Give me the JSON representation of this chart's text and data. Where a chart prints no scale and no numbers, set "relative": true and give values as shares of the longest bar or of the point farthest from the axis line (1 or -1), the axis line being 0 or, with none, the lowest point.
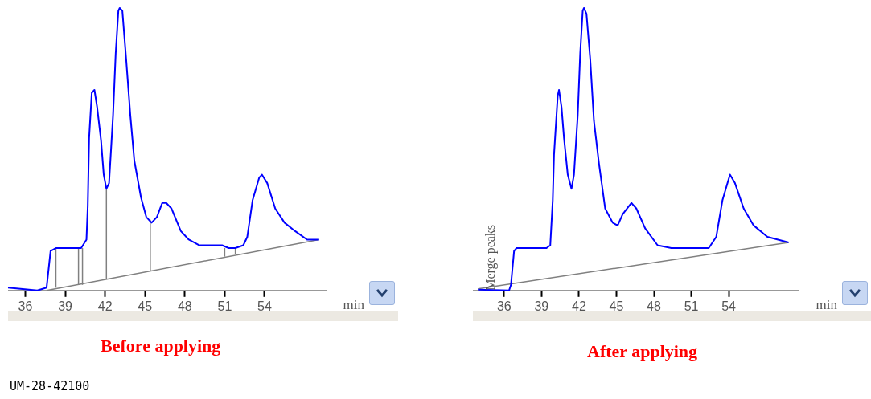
{
  "chart_data": [
    {
      "type": "line",
      "title": "Before applying",
      "xlabel": "min",
      "relative": true,
      "xlim": [
        34.7,
        58.6
      ],
      "xticks": [
        36,
        39,
        42,
        45,
        48,
        51,
        54
      ],
      "grid": false,
      "legend": false,
      "marker": "none",
      "line_style": "solid",
      "annotations": [
        "UM-28-42100"
      ],
      "series": [
        {
          "color": "#0000ff",
          "x": [
            34.7,
            36.9,
            37.6,
            37.9,
            38.3,
            40.2,
            40.6,
            40.7,
            40.8,
            41.0,
            41.2,
            41.4,
            41.7,
            41.9,
            42.1,
            42.3,
            42.6,
            42.8,
            43.0,
            43.1,
            43.3,
            43.6,
            43.9,
            44.2,
            44.7,
            45.1,
            45.5,
            45.9,
            46.3,
            46.6,
            47.0,
            47.7,
            48.3,
            49.1,
            50.8,
            51.3,
            51.8,
            52.4,
            52.7,
            53.1,
            53.6,
            53.8,
            54.2,
            54.8,
            55.5,
            56.3,
            57.2,
            58.1
          ],
          "values": [
            0.01,
            0,
            0.01,
            0.14,
            0.15,
            0.15,
            0.18,
            0.3,
            0.54,
            0.7,
            0.71,
            0.65,
            0.53,
            0.41,
            0.36,
            0.38,
            0.62,
            0.84,
            0.99,
            1,
            0.99,
            0.81,
            0.62,
            0.46,
            0.33,
            0.26,
            0.24,
            0.26,
            0.31,
            0.31,
            0.29,
            0.21,
            0.18,
            0.16,
            0.16,
            0.15,
            0.15,
            0.16,
            0.19,
            0.32,
            0.4,
            0.41,
            0.38,
            0.29,
            0.24,
            0.21,
            0.18,
            0.18
          ]
        },
        {
          "color": "#808080",
          "x": [
            37.6,
            58.1
          ],
          "values": [
            0,
            0.18
          ]
        },
        {
          "color": "#808080",
          "x": [
            38.3,
            38.3
          ],
          "values": [
            0.01,
            0.15
          ]
        },
        {
          "color": "#808080",
          "x": [
            40.0,
            40.0
          ],
          "values": [
            0.02,
            0.15
          ]
        },
        {
          "color": "#808080",
          "x": [
            40.3,
            40.3
          ],
          "values": [
            0.02,
            0.15
          ]
        },
        {
          "color": "#808080",
          "x": [
            42.1,
            42.1
          ],
          "values": [
            0.04,
            0.36
          ]
        },
        {
          "color": "#808080",
          "x": [
            45.4,
            45.4
          ],
          "values": [
            0.07,
            0.25
          ]
        },
        {
          "color": "#808080",
          "x": [
            51.0,
            51.0
          ],
          "values": [
            0.12,
            0.15
          ]
        },
        {
          "color": "#808080",
          "x": [
            51.8,
            51.8
          ],
          "values": [
            0.13,
            0.15
          ]
        }
      ]
    },
    {
      "type": "line",
      "title": "After applying",
      "xlabel": "min",
      "relative": true,
      "xlim": [
        33.5,
        59.6
      ],
      "xticks": [
        36,
        39,
        42,
        45,
        48,
        51,
        54
      ],
      "grid": false,
      "legend": false,
      "marker": "none",
      "line_style": "solid",
      "annotations": [
        {
          "text": "Merge peaks",
          "x": 34.6,
          "y": 0
        }
      ],
      "series": [
        {
          "color": "#0000ff",
          "x": [
            33.9,
            36.4,
            36.55,
            36.8,
            37.0,
            39.4,
            39.7,
            39.9,
            40.0,
            40.3,
            40.4,
            40.6,
            40.8,
            41.1,
            41.4,
            41.6,
            41.9,
            42.1,
            42.3,
            42.4,
            42.6,
            42.9,
            43.2,
            43.6,
            44.1,
            44.7,
            45.1,
            45.5,
            46.2,
            46.6,
            47.3,
            48.3,
            49.4,
            50.5,
            52.4,
            53.0,
            53.5,
            54.1,
            54.5,
            55.2,
            56.0,
            57.1,
            58.8
          ],
          "values": [
            0.003,
            0,
            0.02,
            0.14,
            0.15,
            0.15,
            0.16,
            0.32,
            0.48,
            0.69,
            0.71,
            0.65,
            0.54,
            0.41,
            0.36,
            0.41,
            0.62,
            0.84,
            0.99,
            1,
            0.98,
            0.82,
            0.6,
            0.45,
            0.29,
            0.24,
            0.23,
            0.27,
            0.31,
            0.29,
            0.22,
            0.16,
            0.15,
            0.15,
            0.15,
            0.19,
            0.32,
            0.41,
            0.38,
            0.29,
            0.23,
            0.19,
            0.17
          ]
        },
        {
          "color": "#808080",
          "x": [
            33.9,
            58.8
          ],
          "values": [
            0.006,
            0.17
          ]
        }
      ]
    }
  ]
}
